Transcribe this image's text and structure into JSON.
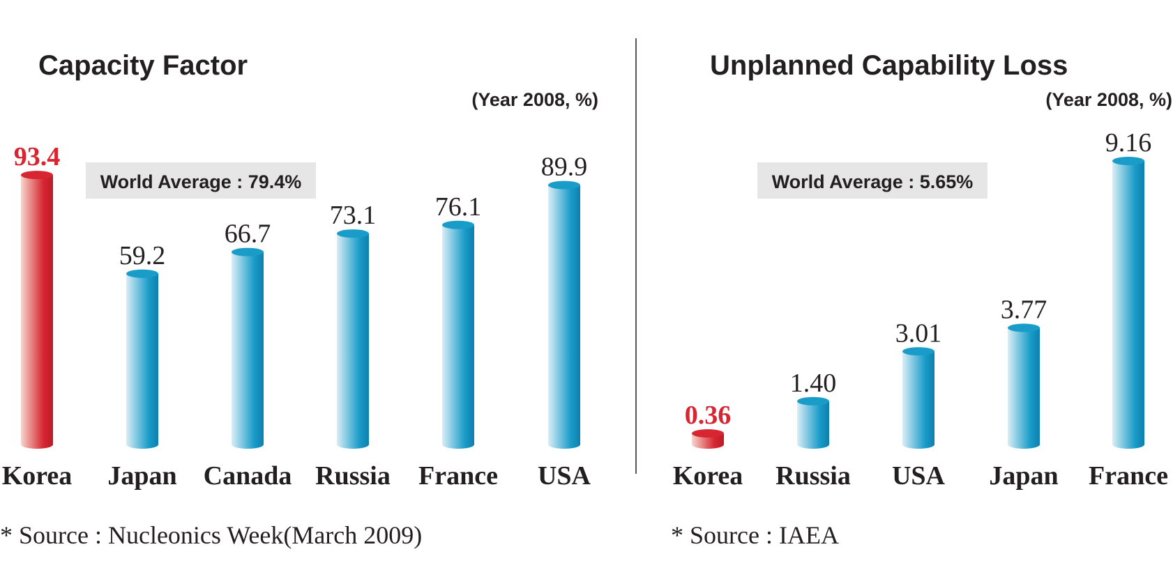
{
  "colors": {
    "bar": "#1a9cc9",
    "bar_light": "#d9eef7",
    "highlight": "#d72631",
    "highlight_light": "#f7d6cc",
    "avg_box": "#e6e6e6",
    "text": "#231f20"
  },
  "chart_data": [
    {
      "type": "bar",
      "title": "Capacity Factor",
      "unit_note": "(Year 2008, %)",
      "categories": [
        "Korea",
        "Japan",
        "Canada",
        "Russia",
        "France",
        "USA"
      ],
      "values": [
        93.4,
        59.2,
        66.7,
        73.1,
        76.1,
        89.9
      ],
      "value_labels": [
        "93.4",
        "59.2",
        "66.7",
        "73.1",
        "76.1",
        "89.9"
      ],
      "highlight_index": 0,
      "annotation": "World Average : 79.4%",
      "source": "* Source : Nucleonics Week(March 2009)",
      "ylim": [
        0,
        100
      ],
      "grid": false,
      "legend": "none"
    },
    {
      "type": "bar",
      "title": "Unplanned Capability Loss",
      "unit_note": "(Year 2008, %)",
      "categories": [
        "Korea",
        "Russia",
        "USA",
        "Japan",
        "France"
      ],
      "values": [
        0.36,
        1.4,
        3.01,
        3.77,
        9.16
      ],
      "value_labels": [
        "0.36",
        "1.40",
        "3.01",
        "3.77",
        "9.16"
      ],
      "highlight_index": 0,
      "annotation": "World Average : 5.65%",
      "source": "* Source : IAEA",
      "ylim": [
        0,
        9.16
      ],
      "grid": false,
      "legend": "none"
    }
  ]
}
